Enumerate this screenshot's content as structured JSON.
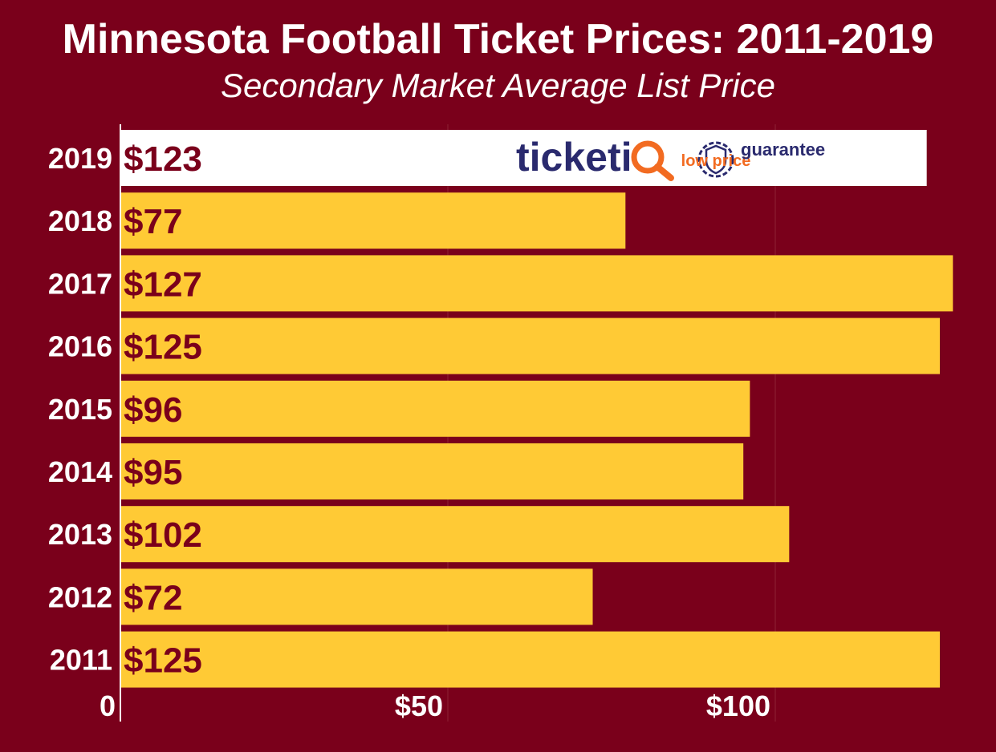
{
  "chart_data": {
    "type": "bar",
    "orientation": "horizontal",
    "title": "Minnesota Football Ticket Prices: 2011-2019",
    "subtitle": "Secondary Market Average List Price",
    "categories": [
      "2019",
      "2018",
      "2017",
      "2016",
      "2015",
      "2014",
      "2013",
      "2012",
      "2011"
    ],
    "values": [
      123,
      77,
      127,
      125,
      96,
      95,
      102,
      72,
      125
    ],
    "value_labels": [
      "$123",
      "$77",
      "$127",
      "$125",
      "$96",
      "$95",
      "$102",
      "$72",
      "$125"
    ],
    "xlabel": "",
    "ylabel": "",
    "xlim": [
      0,
      135
    ],
    "xticks": [
      0,
      50,
      100
    ],
    "xtick_labels": [
      "0",
      "$50",
      "$100"
    ],
    "grid": true,
    "highlight_category": "2019",
    "colors": {
      "background": "#7a001b",
      "bar": "#ffca35",
      "highlight_bar": "#ffffff",
      "value_text": "#7a001b",
      "grid": "#8f2236"
    }
  },
  "logo": {
    "brand": "ticketiQ",
    "tagline_line1": "low price",
    "tagline_line2": "guarantee"
  }
}
